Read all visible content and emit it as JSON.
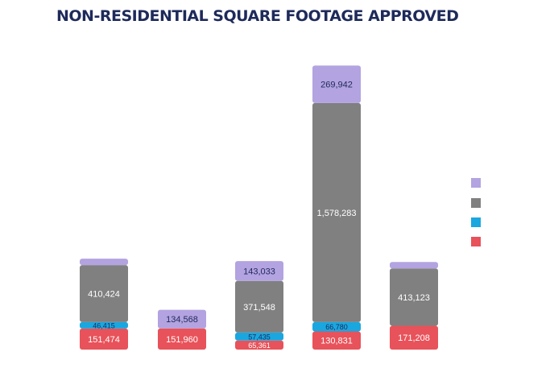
{
  "chart_data": {
    "type": "bar",
    "stacked": true,
    "title": "NON-RESIDENTIAL SQUARE FOOTAGE APPROVED",
    "categories": [
      "",
      "",
      "",
      "",
      ""
    ],
    "xlabel": "",
    "ylabel": "",
    "ylim": [
      0,
      2100000
    ],
    "grid": false,
    "legend_position": "right",
    "series": [
      {
        "color": "#e8525a",
        "values": [
          151474,
          151960,
          65361,
          130831,
          171208
        ]
      },
      {
        "color": "#1aa7e0",
        "values": [
          46415,
          0,
          57435,
          66780,
          0
        ]
      },
      {
        "color": "#808080",
        "values": [
          410424,
          0,
          371548,
          1578283,
          413123
        ]
      },
      {
        "color": "#b3a3e0",
        "values": [
          40000,
          134568,
          143033,
          269942,
          30000
        ]
      }
    ],
    "data_labels": [
      [
        "151,474",
        "46,415",
        "410,424",
        ""
      ],
      [
        "151,960",
        "",
        "",
        "134,568"
      ],
      [
        "65,361",
        "57,435",
        "371,548",
        "143,033"
      ],
      [
        "130,831",
        "66,780",
        "1,578,283",
        "269,942"
      ],
      [
        "171,208",
        "",
        "413,123",
        ""
      ]
    ]
  }
}
